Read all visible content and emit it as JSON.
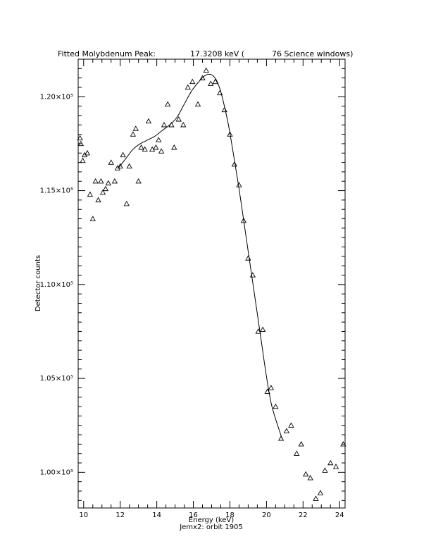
{
  "chart_data": {
    "type": "scatter",
    "title_left": "Fitted Molybdenum Peak:",
    "title_energy": "17.3208 keV (",
    "title_windows": "76 Science windows)",
    "xlabel": "Energy (keV)",
    "ylabel": "Detector counts",
    "caption": "Jemx2: orbit 1905",
    "xlim": [
      9.7,
      24.3
    ],
    "ylim": [
      98100,
      122000
    ],
    "xticks": [
      10,
      12,
      14,
      16,
      18,
      20,
      22,
      24
    ],
    "xtick_labels": [
      "10",
      "12",
      "14",
      "16",
      "18",
      "20",
      "22",
      "24"
    ],
    "yticks": [
      100000,
      105000,
      110000,
      115000,
      120000
    ],
    "ytick_labels": [
      "1.00×10⁵",
      "1.05×10⁵",
      "1.10×10⁵",
      "1.15×10⁵",
      "1.20×10⁵"
    ],
    "series": [
      {
        "marker": "triangle",
        "points": [
          [
            9.8,
            117800
          ],
          [
            9.85,
            117500
          ],
          [
            9.95,
            116600
          ],
          [
            10.05,
            116900
          ],
          [
            10.2,
            117000
          ],
          [
            10.35,
            114800
          ],
          [
            10.5,
            113500
          ],
          [
            10.65,
            115500
          ],
          [
            10.8,
            114500
          ],
          [
            10.95,
            115500
          ],
          [
            11.05,
            114900
          ],
          [
            11.2,
            115100
          ],
          [
            11.35,
            115400
          ],
          [
            11.5,
            116500
          ],
          [
            11.7,
            115500
          ],
          [
            11.85,
            116200
          ],
          [
            12.0,
            116300
          ],
          [
            12.15,
            116900
          ],
          [
            12.35,
            114300
          ],
          [
            12.5,
            116300
          ],
          [
            12.7,
            118000
          ],
          [
            12.85,
            118300
          ],
          [
            13.0,
            115500
          ],
          [
            13.15,
            117300
          ],
          [
            13.35,
            117200
          ],
          [
            13.55,
            118700
          ],
          [
            13.75,
            117200
          ],
          [
            13.95,
            117300
          ],
          [
            14.1,
            117700
          ],
          [
            14.25,
            117100
          ],
          [
            14.4,
            118500
          ],
          [
            14.6,
            119600
          ],
          [
            14.8,
            118500
          ],
          [
            14.95,
            117300
          ],
          [
            15.2,
            118800
          ],
          [
            15.45,
            118500
          ],
          [
            15.7,
            120500
          ],
          [
            15.95,
            120800
          ],
          [
            16.25,
            119600
          ],
          [
            16.5,
            121000
          ],
          [
            16.7,
            121400
          ],
          [
            16.95,
            120700
          ],
          [
            17.2,
            120800
          ],
          [
            17.45,
            120200
          ],
          [
            17.7,
            119300
          ],
          [
            18.0,
            118000
          ],
          [
            18.25,
            116400
          ],
          [
            18.5,
            115300
          ],
          [
            18.75,
            113400
          ],
          [
            19.0,
            111400
          ],
          [
            19.25,
            110500
          ],
          [
            19.55,
            107500
          ],
          [
            19.8,
            107600
          ],
          [
            20.05,
            104300
          ],
          [
            20.25,
            104500
          ],
          [
            20.5,
            103500
          ],
          [
            20.8,
            101800
          ],
          [
            21.1,
            102200
          ],
          [
            21.35,
            102500
          ],
          [
            21.65,
            101000
          ],
          [
            21.9,
            101500
          ],
          [
            22.15,
            99900
          ],
          [
            22.4,
            99700
          ],
          [
            22.7,
            98600
          ],
          [
            22.95,
            98900
          ],
          [
            23.2,
            100100
          ],
          [
            23.5,
            100500
          ],
          [
            23.8,
            100300
          ],
          [
            24.2,
            101500
          ]
        ]
      },
      {
        "marker": "line",
        "points": [
          [
            11.9,
            116200
          ],
          [
            12.3,
            116700
          ],
          [
            12.7,
            117200
          ],
          [
            13.1,
            117500
          ],
          [
            13.5,
            117700
          ],
          [
            13.9,
            117900
          ],
          [
            14.3,
            118200
          ],
          [
            14.7,
            118500
          ],
          [
            15.1,
            118900
          ],
          [
            15.5,
            119600
          ],
          [
            15.9,
            120300
          ],
          [
            16.3,
            120800
          ],
          [
            16.6,
            121100
          ],
          [
            16.85,
            121200
          ],
          [
            17.1,
            121100
          ],
          [
            17.35,
            120700
          ],
          [
            17.6,
            119900
          ],
          [
            17.9,
            118600
          ],
          [
            18.2,
            116900
          ],
          [
            18.5,
            115100
          ],
          [
            18.8,
            113100
          ],
          [
            19.1,
            111100
          ],
          [
            19.4,
            109100
          ],
          [
            19.7,
            107100
          ],
          [
            20.0,
            105100
          ],
          [
            20.3,
            103500
          ],
          [
            20.85,
            101800
          ]
        ]
      }
    ]
  }
}
